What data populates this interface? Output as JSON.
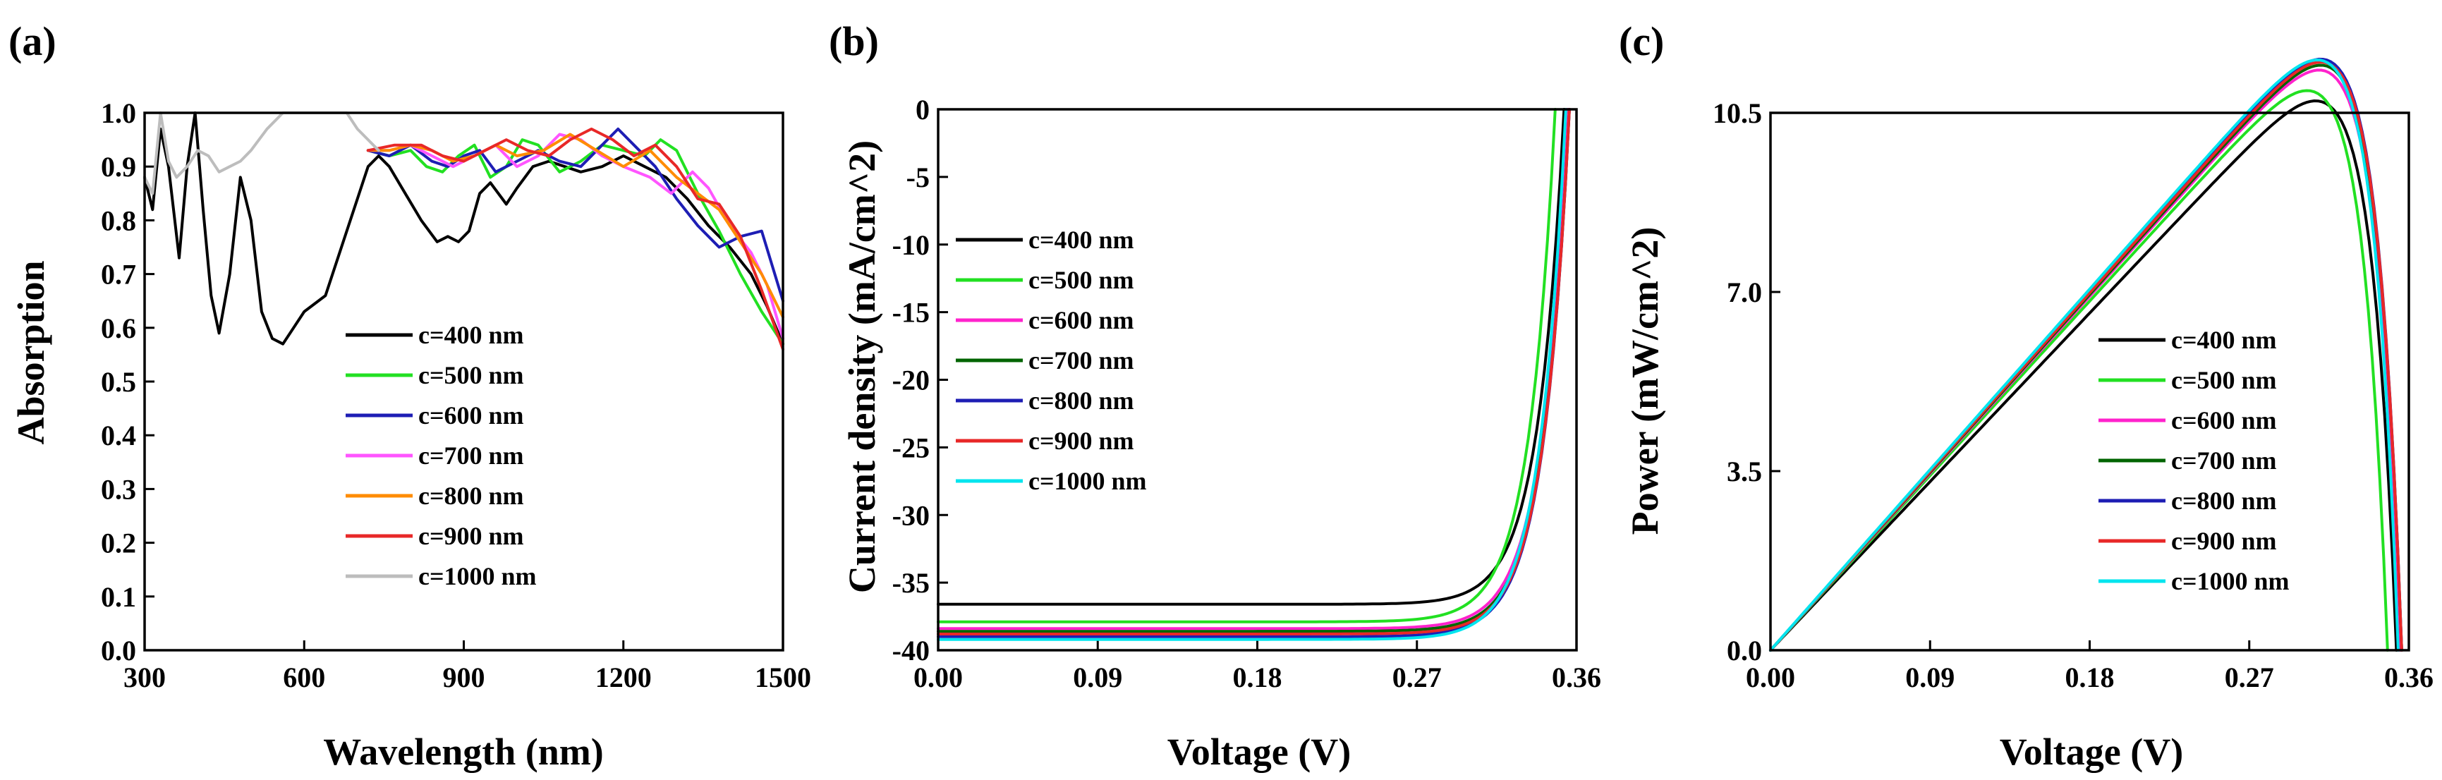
{
  "colors": {
    "c400": "#000000",
    "c500": "#22e022",
    "c600": "#1e1eb4",
    "c700": "#ff55ff",
    "c800": "#ff8c00",
    "c900": "#e82828",
    "c1000": "#bdbdbd",
    "c700_dark": "#006400",
    "c800_blue": "#1e1eb4",
    "c600_magenta": "#ff22cc",
    "c1000_cyan": "#00e5ee"
  },
  "chart_data": [
    {
      "panel": "(a)",
      "type": "line",
      "xlabel": "Wavelength (nm)",
      "ylabel": "Absorption",
      "xlim": [
        300,
        1500
      ],
      "ylim": [
        0.0,
        1.0
      ],
      "xticks": [
        "300",
        "600",
        "900",
        "1200",
        "1500"
      ],
      "yticks": [
        "0.0",
        "0.1",
        "0.2",
        "0.3",
        "0.4",
        "0.5",
        "0.6",
        "0.7",
        "0.8",
        "0.9",
        "1.0"
      ],
      "legend_position": "bottom-center",
      "series": [
        {
          "name": "c=400 nm",
          "color": "#000000",
          "x": [
            300,
            315,
            330,
            345,
            365,
            380,
            395,
            410,
            425,
            440,
            460,
            480,
            500,
            520,
            540,
            560,
            580,
            600,
            640,
            680,
            720,
            740,
            760,
            790,
            820,
            850,
            870,
            890,
            910,
            930,
            950,
            980,
            1000,
            1030,
            1060,
            1090,
            1120,
            1160,
            1200,
            1240,
            1280,
            1320,
            1360,
            1400,
            1440,
            1470,
            1500
          ],
          "y": [
            0.88,
            0.82,
            0.97,
            0.9,
            0.73,
            0.9,
            1.0,
            0.82,
            0.66,
            0.59,
            0.7,
            0.88,
            0.8,
            0.63,
            0.58,
            0.57,
            0.6,
            0.63,
            0.66,
            0.78,
            0.9,
            0.92,
            0.9,
            0.85,
            0.8,
            0.76,
            0.77,
            0.76,
            0.78,
            0.85,
            0.87,
            0.83,
            0.86,
            0.9,
            0.91,
            0.9,
            0.89,
            0.9,
            0.92,
            0.9,
            0.88,
            0.84,
            0.79,
            0.75,
            0.7,
            0.64,
            0.57
          ]
        },
        {
          "name": "c=500 nm",
          "color": "#22e022",
          "x": [
            720,
            760,
            800,
            830,
            860,
            890,
            920,
            950,
            980,
            1010,
            1040,
            1080,
            1120,
            1160,
            1200,
            1240,
            1270,
            1300,
            1340,
            1380,
            1420,
            1460,
            1500
          ],
          "y": [
            0.93,
            0.92,
            0.93,
            0.9,
            0.89,
            0.92,
            0.94,
            0.88,
            0.9,
            0.95,
            0.94,
            0.89,
            0.91,
            0.94,
            0.93,
            0.92,
            0.95,
            0.93,
            0.85,
            0.78,
            0.7,
            0.63,
            0.57
          ]
        },
        {
          "name": "c=600 nm",
          "color": "#1e1eb4",
          "x": [
            720,
            760,
            800,
            840,
            870,
            900,
            930,
            960,
            1000,
            1040,
            1080,
            1120,
            1160,
            1190,
            1220,
            1260,
            1300,
            1340,
            1380,
            1420,
            1460,
            1500
          ],
          "y": [
            0.93,
            0.92,
            0.94,
            0.91,
            0.9,
            0.92,
            0.93,
            0.89,
            0.91,
            0.93,
            0.91,
            0.9,
            0.94,
            0.97,
            0.94,
            0.9,
            0.84,
            0.79,
            0.75,
            0.77,
            0.78,
            0.65
          ]
        },
        {
          "name": "c=700 nm",
          "color": "#ff55ff",
          "x": [
            720,
            760,
            800,
            840,
            880,
            920,
            960,
            1000,
            1040,
            1080,
            1120,
            1160,
            1200,
            1250,
            1290,
            1330,
            1360,
            1400,
            1440,
            1470,
            1500
          ],
          "y": [
            0.93,
            0.93,
            0.94,
            0.92,
            0.9,
            0.92,
            0.94,
            0.9,
            0.92,
            0.96,
            0.95,
            0.92,
            0.9,
            0.88,
            0.85,
            0.89,
            0.86,
            0.79,
            0.74,
            0.68,
            0.58
          ]
        },
        {
          "name": "c=800 nm",
          "color": "#ff8c00",
          "x": [
            720,
            760,
            800,
            840,
            880,
            920,
            960,
            1000,
            1050,
            1100,
            1150,
            1200,
            1250,
            1300,
            1340,
            1380,
            1420,
            1460,
            1500
          ],
          "y": [
            0.93,
            0.93,
            0.94,
            0.93,
            0.91,
            0.92,
            0.94,
            0.92,
            0.93,
            0.96,
            0.93,
            0.9,
            0.93,
            0.88,
            0.85,
            0.82,
            0.76,
            0.7,
            0.62
          ]
        },
        {
          "name": "c=900 nm",
          "color": "#e82828",
          "x": [
            720,
            770,
            820,
            860,
            900,
            940,
            980,
            1020,
            1060,
            1100,
            1140,
            1180,
            1220,
            1260,
            1300,
            1340,
            1380,
            1420,
            1460,
            1500
          ],
          "y": [
            0.93,
            0.94,
            0.94,
            0.92,
            0.91,
            0.93,
            0.95,
            0.93,
            0.92,
            0.95,
            0.97,
            0.95,
            0.92,
            0.94,
            0.9,
            0.84,
            0.83,
            0.77,
            0.67,
            0.56
          ]
        },
        {
          "name": "c=1000 nm",
          "color": "#bdbdbd",
          "x": [
            300,
            315,
            330,
            345,
            360,
            380,
            400,
            420,
            440,
            460,
            480,
            500,
            530,
            560,
            600,
            640,
            680,
            700,
            720,
            740
          ],
          "y": [
            0.88,
            0.85,
            1.0,
            0.91,
            0.88,
            0.9,
            0.93,
            0.92,
            0.89,
            0.9,
            0.91,
            0.93,
            0.97,
            1.0,
            1.0,
            1.0,
            1.0,
            0.97,
            0.95,
            0.93
          ]
        }
      ]
    },
    {
      "panel": "(b)",
      "type": "line",
      "xlabel": "Voltage (V)",
      "ylabel": "Current density (mA/cm^2)",
      "xlim": [
        0.0,
        0.36
      ],
      "ylim": [
        -40,
        0
      ],
      "xticks": [
        "0.00",
        "0.09",
        "0.18",
        "0.27",
        "0.36"
      ],
      "yticks": [
        "0",
        "-5",
        "-10",
        "-15",
        "-20",
        "-25",
        "-30",
        "-35",
        "-40"
      ],
      "legend_position": "upper-left",
      "series": [
        {
          "name": "c=400 nm",
          "color": "#000000",
          "jsc": -36.6,
          "voc": 0.353
        },
        {
          "name": "c=500 nm",
          "color": "#22e022",
          "jsc": -37.9,
          "voc": 0.348
        },
        {
          "name": "c=600 nm",
          "color": "#ff22cc",
          "jsc": -38.4,
          "voc": 0.355
        },
        {
          "name": "c=700 nm",
          "color": "#006400",
          "jsc": -38.6,
          "voc": 0.356
        },
        {
          "name": "c=800 nm",
          "color": "#1e1eb4",
          "jsc": -39.0,
          "voc": 0.356
        },
        {
          "name": "c=900 nm",
          "color": "#e82828",
          "jsc": -38.8,
          "voc": 0.356
        },
        {
          "name": "c=1000 nm",
          "color": "#00e5ee",
          "jsc": -39.2,
          "voc": 0.354
        }
      ]
    },
    {
      "panel": "(c)",
      "type": "line",
      "xlabel": "Voltage (V)",
      "ylabel": "Power (mW/cm^2)",
      "xlim": [
        0.0,
        0.36
      ],
      "ylim": [
        0.0,
        10.5
      ],
      "xticks": [
        "0.00",
        "0.09",
        "0.18",
        "0.27",
        "0.36"
      ],
      "yticks": [
        "0.0",
        "3.5",
        "7.0",
        "10.5"
      ],
      "legend_position": "lower-right",
      "series": [
        {
          "name": "c=400 nm",
          "color": "#000000",
          "jsc": -36.6,
          "voc": 0.353
        },
        {
          "name": "c=500 nm",
          "color": "#22e022",
          "jsc": -37.9,
          "voc": 0.348
        },
        {
          "name": "c=600 nm",
          "color": "#ff22cc",
          "jsc": -38.4,
          "voc": 0.355
        },
        {
          "name": "c=700 nm",
          "color": "#006400",
          "jsc": -38.6,
          "voc": 0.356
        },
        {
          "name": "c=800 nm",
          "color": "#1e1eb4",
          "jsc": -39.0,
          "voc": 0.356
        },
        {
          "name": "c=900 nm",
          "color": "#e82828",
          "jsc": -38.8,
          "voc": 0.356
        },
        {
          "name": "c=1000 nm",
          "color": "#00e5ee",
          "jsc": -39.2,
          "voc": 0.354
        }
      ]
    }
  ]
}
